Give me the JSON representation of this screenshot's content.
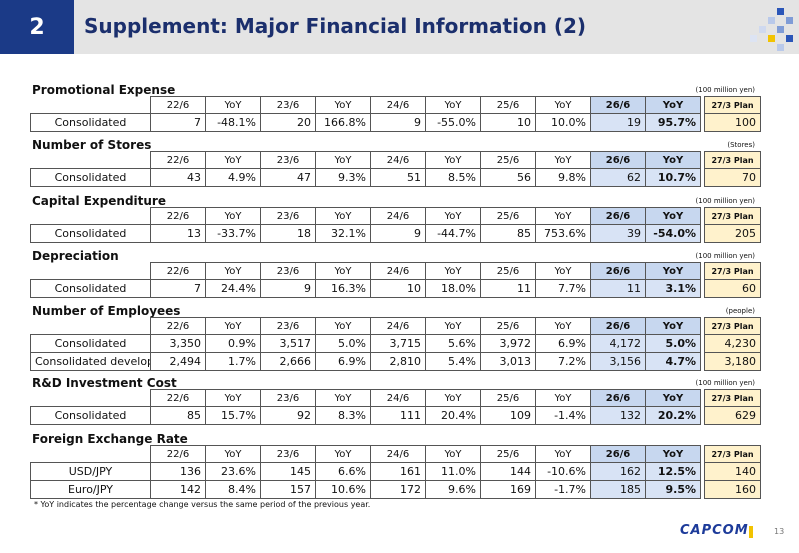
{
  "header": {
    "number": "2",
    "title": "Supplement: Major Financial Information (2)"
  },
  "columns": [
    "22/6",
    "YoY",
    "23/6",
    "YoY",
    "24/6",
    "YoY",
    "25/6",
    "YoY",
    "26/6",
    "YoY",
    "27/3 Plan"
  ],
  "sections": [
    {
      "title": "Promotional Expense",
      "unit": "(100 million yen)",
      "rows": [
        {
          "label": "Consolidated",
          "cells": [
            "7",
            "-48.1%",
            "20",
            "166.8%",
            "9",
            "-55.0%",
            "10",
            "10.0%",
            "19",
            "95.7%",
            "100"
          ]
        }
      ]
    },
    {
      "title": "Number of Stores",
      "unit": "(Stores)",
      "rows": [
        {
          "label": "Consolidated",
          "cells": [
            "43",
            "4.9%",
            "47",
            "9.3%",
            "51",
            "8.5%",
            "56",
            "9.8%",
            "62",
            "10.7%",
            "70"
          ]
        }
      ]
    },
    {
      "title": "Capital Expenditure",
      "unit": "(100 million yen)",
      "rows": [
        {
          "label": "Consolidated",
          "cells": [
            "13",
            "-33.7%",
            "18",
            "32.1%",
            "9",
            "-44.7%",
            "85",
            "753.6%",
            "39",
            "-54.0%",
            "205"
          ]
        }
      ]
    },
    {
      "title": "Depreciation",
      "unit": "(100 million yen)",
      "rows": [
        {
          "label": "Consolidated",
          "cells": [
            "7",
            "24.4%",
            "9",
            "16.3%",
            "10",
            "18.0%",
            "11",
            "7.7%",
            "11",
            "3.1%",
            "60"
          ]
        }
      ]
    },
    {
      "title": "Number of Employees",
      "unit": "(people)",
      "rows": [
        {
          "label": "Consolidated",
          "cells": [
            "3,350",
            "0.9%",
            "3,517",
            "5.0%",
            "3,715",
            "5.6%",
            "3,972",
            "6.9%",
            "4,172",
            "5.0%",
            "4,230"
          ]
        },
        {
          "label": "Consolidated developers",
          "sub": true,
          "cells": [
            "2,494",
            "1.7%",
            "2,666",
            "6.9%",
            "2,810",
            "5.4%",
            "3,013",
            "7.2%",
            "3,156",
            "4.7%",
            "3,180"
          ]
        }
      ]
    },
    {
      "title": "R&D Investment Cost",
      "unit": "(100 million yen)",
      "rows": [
        {
          "label": "Consolidated",
          "cells": [
            "85",
            "15.7%",
            "92",
            "8.3%",
            "111",
            "20.4%",
            "109",
            "-1.4%",
            "132",
            "20.2%",
            "629"
          ]
        }
      ]
    },
    {
      "title": "Foreign Exchange Rate",
      "unit": "",
      "rows": [
        {
          "label": "USD/JPY",
          "cells": [
            "136",
            "23.6%",
            "145",
            "6.6%",
            "161",
            "11.0%",
            "144",
            "-10.6%",
            "162",
            "12.5%",
            "140"
          ]
        },
        {
          "label": "Euro/JPY",
          "cells": [
            "142",
            "8.4%",
            "157",
            "10.6%",
            "172",
            "9.6%",
            "169",
            "-1.7%",
            "185",
            "9.5%",
            "160"
          ]
        }
      ]
    }
  ],
  "footnote": "* YoY indicates the percentage change versus the same period of the previous year.",
  "logo_text": "CAPCOM",
  "page_number": "13",
  "colors": {
    "brand": "#1b3a87",
    "highlight": "#d8e3f5",
    "plan": "#fff2cc",
    "logo_accent": "#f2c300"
  }
}
